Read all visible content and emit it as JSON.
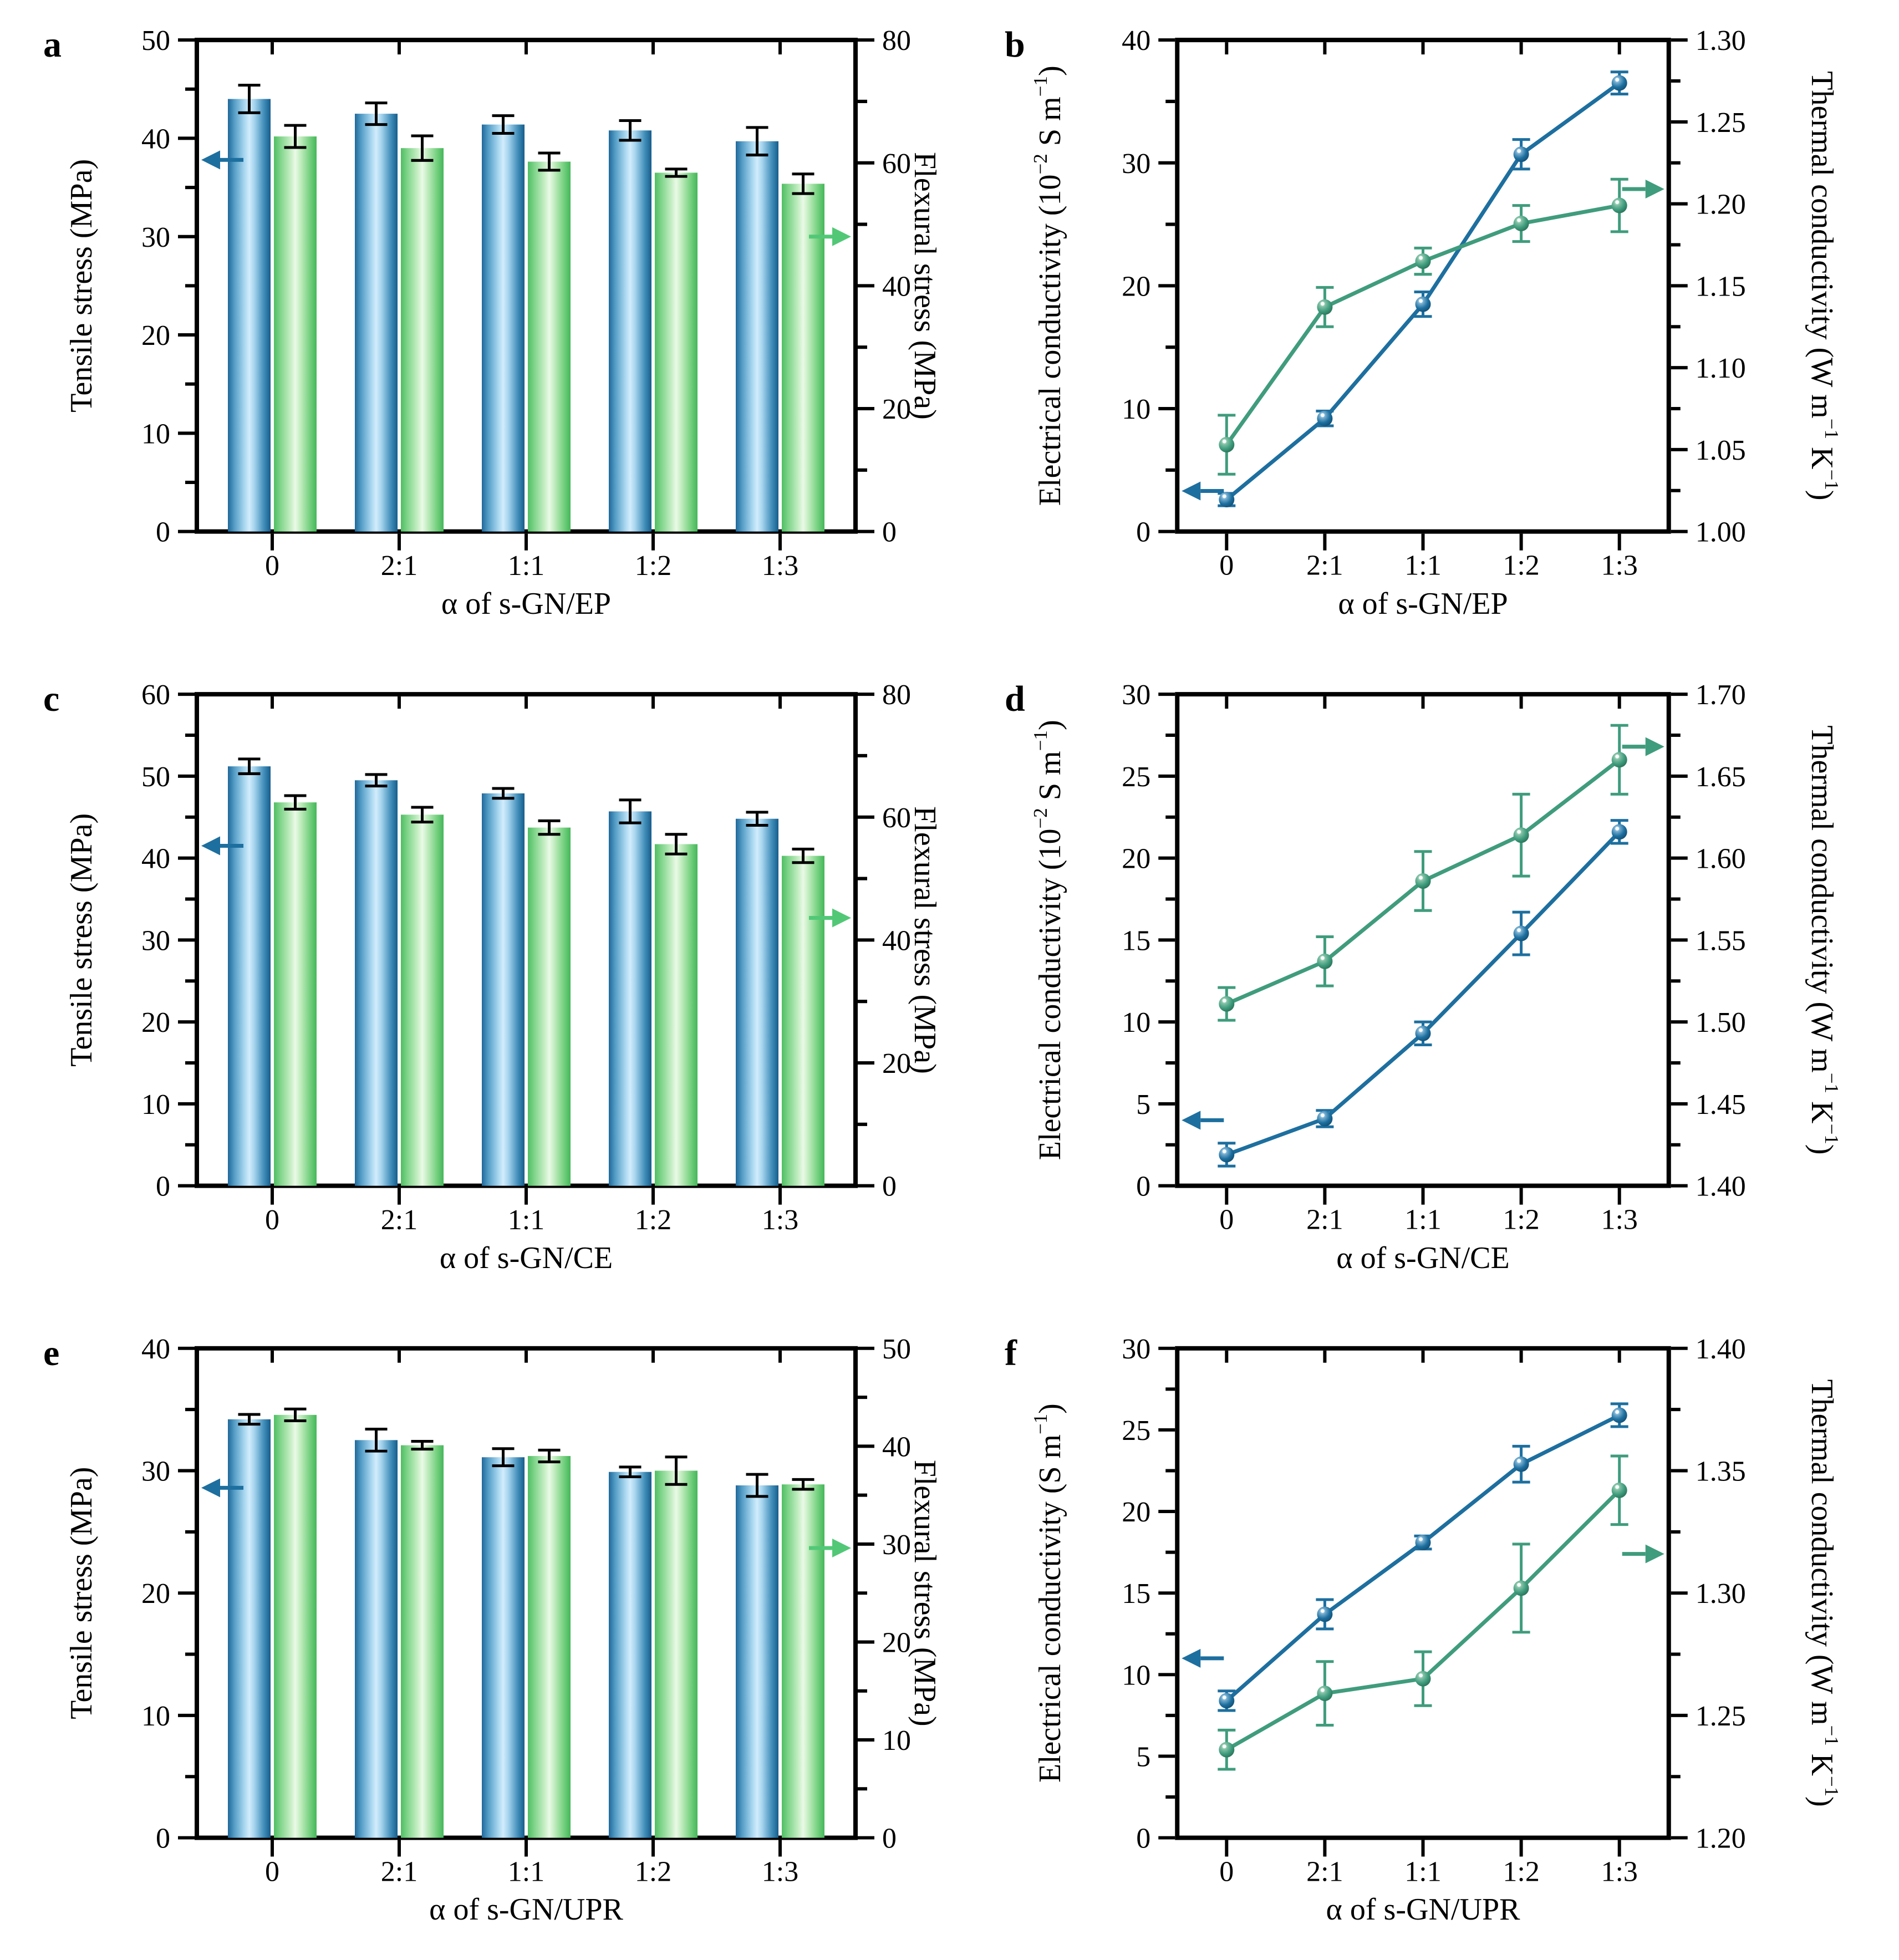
{
  "figure": {
    "background": "#ffffff",
    "description": "Six-panel figure: mechanical properties (bar charts) and electrical/thermal conductivity (line charts) of s-GN composites"
  },
  "colors": {
    "bar_blue_edge": "#1e6796",
    "bar_blue_light": "#d2ecfc",
    "bar_green_edge": "#4fbe63",
    "bar_green_light": "#eafae7",
    "line_blue": "#1d6f9f",
    "line_green": "#3f9c7d",
    "marker_blue_dark": "#0f4a6e",
    "marker_green_dark": "#256b52",
    "error_bar_chart": "#000000",
    "axis": "#000000"
  },
  "chart_data": [
    {
      "panel_label": "a",
      "type": "bar",
      "x": {
        "title": "α of s-GN/EP",
        "categories": [
          "0",
          "2:1",
          "1:1",
          "1:2",
          "1:3"
        ]
      },
      "left_axis": {
        "title": "Tensile stress (MPa)",
        "min": 0,
        "max": 50,
        "tick_values": [
          0,
          10,
          20,
          30,
          40,
          50
        ],
        "tick_labels": [
          "0",
          "10",
          "20",
          "30",
          "40",
          "50"
        ]
      },
      "right_axis": {
        "title": "Flexural stress (MPa)",
        "min": 0,
        "max": 80,
        "tick_values": [
          0,
          20,
          40,
          60,
          80
        ],
        "tick_labels": [
          "0",
          "20",
          "40",
          "60",
          "80"
        ]
      },
      "series": [
        {
          "name": "Tensile stress",
          "axis": "left",
          "style": "bar",
          "color_key": "blue",
          "values": [
            44.0,
            42.5,
            41.4,
            40.8,
            39.7
          ],
          "errors": [
            1.4,
            1.1,
            0.9,
            1.0,
            1.4
          ]
        },
        {
          "name": "Flexural stress",
          "axis": "right",
          "style": "bar",
          "color_key": "green",
          "values": [
            64.3,
            62.4,
            60.2,
            58.4,
            56.6
          ],
          "errors": [
            1.8,
            2.0,
            1.4,
            0.6,
            1.6
          ]
        }
      ],
      "arrows": [
        {
          "direction": "left",
          "axis": "left",
          "value": 37.8,
          "color_key": "blue"
        },
        {
          "direction": "right",
          "axis": "right",
          "value": 48.0,
          "color_key": "green"
        }
      ]
    },
    {
      "panel_label": "b",
      "type": "line",
      "x": {
        "title": "α of s-GN/EP",
        "categories": [
          "0",
          "2:1",
          "1:1",
          "1:2",
          "1:3"
        ]
      },
      "left_axis": {
        "title": "Electrical conductivity (10^{−2} S m^{−1})",
        "min": 0,
        "max": 40,
        "tick_values": [
          0,
          10,
          20,
          30,
          40
        ],
        "tick_labels": [
          "0",
          "10",
          "20",
          "30",
          "40"
        ]
      },
      "right_axis": {
        "title": "Thermal conductivity (W m^{−1} K^{−1})",
        "min": 1.0,
        "max": 1.3,
        "tick_values": [
          1.0,
          1.05,
          1.1,
          1.15,
          1.2,
          1.25,
          1.3
        ],
        "tick_labels": [
          "1.00",
          "1.05",
          "1.10",
          "1.15",
          "1.20",
          "1.25",
          "1.30"
        ]
      },
      "series": [
        {
          "name": "Electrical conductivity",
          "axis": "left",
          "style": "line",
          "color_key": "blue",
          "values": [
            2.6,
            9.2,
            18.5,
            30.7,
            36.5
          ],
          "errors": [
            0.5,
            0.6,
            1.0,
            1.2,
            0.9
          ]
        },
        {
          "name": "Thermal conductivity",
          "axis": "right",
          "style": "line",
          "color_key": "green",
          "values": [
            1.053,
            1.137,
            1.165,
            1.188,
            1.199
          ],
          "errors": [
            0.018,
            0.012,
            0.008,
            0.011,
            0.016
          ]
        }
      ],
      "arrows": [
        {
          "direction": "left",
          "axis": "left",
          "value": 3.3,
          "color_key": "blue"
        },
        {
          "direction": "right",
          "axis": "right",
          "value": 1.209,
          "color_key": "green"
        }
      ]
    },
    {
      "panel_label": "c",
      "type": "bar",
      "x": {
        "title": "α of s-GN/CE",
        "categories": [
          "0",
          "2:1",
          "1:1",
          "1:2",
          "1:3"
        ]
      },
      "left_axis": {
        "title": "Tensile stress (MPa)",
        "min": 0,
        "max": 60,
        "tick_values": [
          0,
          10,
          20,
          30,
          40,
          50,
          60
        ],
        "tick_labels": [
          "0",
          "10",
          "20",
          "30",
          "40",
          "50",
          "60"
        ]
      },
      "right_axis": {
        "title": "Flexural stress (MPa)",
        "min": 0,
        "max": 80,
        "tick_values": [
          0,
          20,
          40,
          60,
          80
        ],
        "tick_labels": [
          "0",
          "20",
          "40",
          "60",
          "80"
        ]
      },
      "series": [
        {
          "name": "Tensile stress",
          "axis": "left",
          "style": "bar",
          "color_key": "blue",
          "values": [
            51.2,
            49.5,
            47.9,
            45.7,
            44.8
          ],
          "errors": [
            0.9,
            0.7,
            0.6,
            1.4,
            0.8
          ]
        },
        {
          "name": "Flexural stress",
          "axis": "right",
          "style": "bar",
          "color_key": "green",
          "values": [
            62.4,
            60.4,
            58.3,
            55.6,
            53.7
          ],
          "errors": [
            1.1,
            1.2,
            1.1,
            1.6,
            1.1
          ]
        }
      ],
      "arrows": [
        {
          "direction": "left",
          "axis": "left",
          "value": 41.5,
          "color_key": "blue"
        },
        {
          "direction": "right",
          "axis": "right",
          "value": 43.6,
          "color_key": "green"
        }
      ]
    },
    {
      "panel_label": "d",
      "type": "line",
      "x": {
        "title": "α of s-GN/CE",
        "categories": [
          "0",
          "2:1",
          "1:1",
          "1:2",
          "1:3"
        ]
      },
      "left_axis": {
        "title": "Electrical conductivity (10^{−2} S m^{−1})",
        "min": 0,
        "max": 30,
        "tick_values": [
          0,
          5,
          10,
          15,
          20,
          25,
          30
        ],
        "tick_labels": [
          "0",
          "5",
          "10",
          "15",
          "20",
          "25",
          "30"
        ]
      },
      "right_axis": {
        "title": "Thermal conductivity (W m^{−1} K^{−1})",
        "min": 1.4,
        "max": 1.7,
        "tick_values": [
          1.4,
          1.45,
          1.5,
          1.55,
          1.6,
          1.65,
          1.7
        ],
        "tick_labels": [
          "1.40",
          "1.45",
          "1.50",
          "1.55",
          "1.60",
          "1.65",
          "1.70"
        ]
      },
      "series": [
        {
          "name": "Electrical conductivity",
          "axis": "left",
          "style": "line",
          "color_key": "blue",
          "values": [
            1.9,
            4.1,
            9.3,
            15.4,
            21.6
          ],
          "errors": [
            0.7,
            0.5,
            0.7,
            1.3,
            0.7
          ]
        },
        {
          "name": "Thermal conductivity",
          "axis": "right",
          "style": "line",
          "color_key": "green",
          "values": [
            1.511,
            1.537,
            1.586,
            1.614,
            1.66
          ],
          "errors": [
            0.01,
            0.015,
            0.018,
            0.025,
            0.021
          ]
        }
      ],
      "arrows": [
        {
          "direction": "left",
          "axis": "left",
          "value": 4.0,
          "color_key": "blue"
        },
        {
          "direction": "right",
          "axis": "right",
          "value": 1.668,
          "color_key": "green"
        }
      ]
    },
    {
      "panel_label": "e",
      "type": "bar",
      "x": {
        "title": "α of s-GN/UPR",
        "categories": [
          "0",
          "2:1",
          "1:1",
          "1:2",
          "1:3"
        ]
      },
      "left_axis": {
        "title": "Tensile stress (MPa)",
        "min": 0,
        "max": 40,
        "tick_values": [
          0,
          10,
          20,
          30,
          40
        ],
        "tick_labels": [
          "0",
          "10",
          "20",
          "30",
          "40"
        ]
      },
      "right_axis": {
        "title": "Flexural stress (MPa)",
        "min": 0,
        "max": 50,
        "tick_values": [
          0,
          10,
          20,
          30,
          40,
          50
        ],
        "tick_labels": [
          "0",
          "10",
          "20",
          "30",
          "40",
          "50"
        ]
      },
      "series": [
        {
          "name": "Tensile stress",
          "axis": "left",
          "style": "bar",
          "color_key": "blue",
          "values": [
            34.2,
            32.5,
            31.1,
            29.9,
            28.8
          ],
          "errors": [
            0.4,
            0.9,
            0.7,
            0.4,
            0.9
          ]
        },
        {
          "name": "Flexural stress",
          "axis": "right",
          "style": "bar",
          "color_key": "green",
          "values": [
            43.2,
            40.1,
            39.0,
            37.5,
            36.1
          ],
          "errors": [
            0.6,
            0.4,
            0.6,
            1.4,
            0.5
          ]
        }
      ],
      "arrows": [
        {
          "direction": "left",
          "axis": "left",
          "value": 28.6,
          "color_key": "blue"
        },
        {
          "direction": "right",
          "axis": "right",
          "value": 29.6,
          "color_key": "green"
        }
      ]
    },
    {
      "panel_label": "f",
      "type": "line",
      "x": {
        "title": "α of s-GN/UPR",
        "categories": [
          "0",
          "2:1",
          "1:1",
          "1:2",
          "1:3"
        ]
      },
      "left_axis": {
        "title": "Electrical conductivity (S m^{−1})",
        "min": 0,
        "max": 30,
        "tick_values": [
          0,
          5,
          10,
          15,
          20,
          25,
          30
        ],
        "tick_labels": [
          "0",
          "5",
          "10",
          "15",
          "20",
          "25",
          "30"
        ]
      },
      "right_axis": {
        "title": "Thermal conductivity (W m^{−1} K^{−1})",
        "min": 1.2,
        "max": 1.4,
        "tick_values": [
          1.2,
          1.25,
          1.3,
          1.35,
          1.4
        ],
        "tick_labels": [
          "1.20",
          "1.25",
          "1.30",
          "1.35",
          "1.40"
        ]
      },
      "series": [
        {
          "name": "Electrical conductivity",
          "axis": "left",
          "style": "line",
          "color_key": "blue",
          "values": [
            8.4,
            13.7,
            18.1,
            22.9,
            25.9
          ],
          "errors": [
            0.6,
            0.9,
            0.4,
            1.1,
            0.7
          ]
        },
        {
          "name": "Thermal conductivity",
          "axis": "right",
          "style": "line",
          "color_key": "green",
          "values": [
            1.236,
            1.259,
            1.265,
            1.302,
            1.342
          ],
          "errors": [
            0.008,
            0.013,
            0.011,
            0.018,
            0.014
          ]
        }
      ],
      "arrows": [
        {
          "direction": "left",
          "axis": "left",
          "value": 11.0,
          "color_key": "blue"
        },
        {
          "direction": "right",
          "axis": "right",
          "value": 1.316,
          "color_key": "green"
        }
      ]
    }
  ]
}
